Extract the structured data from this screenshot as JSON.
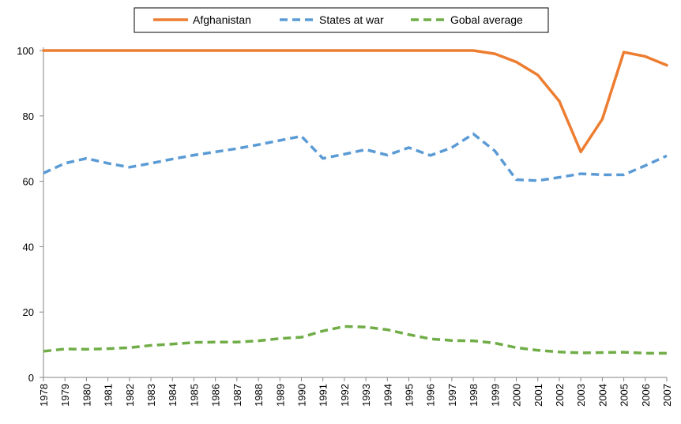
{
  "chart_data": {
    "type": "line",
    "title": "",
    "xlabel": "",
    "ylabel": "",
    "ylim": [
      0,
      100
    ],
    "yticks": [
      0,
      20,
      40,
      60,
      80,
      100
    ],
    "grid": false,
    "legend_position": "top-center",
    "x": [
      "1978",
      "1979",
      "1980",
      "1981",
      "1982",
      "1983",
      "1984",
      "1985",
      "1986",
      "1987",
      "1988",
      "1989",
      "1990",
      "1991",
      "1992",
      "1993",
      "1994",
      "1995",
      "1996",
      "1997",
      "1998",
      "1999",
      "2000",
      "2001",
      "2002",
      "2003",
      "2004",
      "2005",
      "2006",
      "2007"
    ],
    "series": [
      {
        "name": "Afghanistan",
        "color": "#ED7D31",
        "dash": "solid",
        "values": [
          100,
          100,
          100,
          100,
          100,
          100,
          100,
          100,
          100,
          100,
          100,
          100,
          100,
          100,
          100,
          100,
          100,
          100,
          100,
          100,
          100,
          99,
          96.5,
          92.5,
          84.5,
          69,
          79,
          99.5,
          98.2,
          95.5
        ]
      },
      {
        "name": "States at war",
        "color": "#5B9BD5",
        "dash": "dashed",
        "values": [
          62.5,
          65.5,
          67,
          65.5,
          64.3,
          65.5,
          66.8,
          68,
          69,
          70,
          71.2,
          72.5,
          73.8,
          67,
          68.3,
          69.7,
          68,
          70.3,
          67.9,
          70.3,
          74.5,
          69.3,
          60.5,
          60.2,
          61.2,
          62.3,
          62,
          62,
          64.8,
          67.8
        ]
      },
      {
        "name": "Gobal average",
        "color": "#70AD47",
        "dash": "dashed",
        "values": [
          8,
          8.7,
          8.6,
          8.8,
          9.1,
          9.8,
          10.2,
          10.7,
          10.8,
          10.8,
          11.2,
          11.9,
          12.3,
          14.2,
          15.6,
          15.4,
          14.6,
          13.1,
          11.8,
          11.3,
          11.2,
          10.5,
          9.1,
          8.3,
          7.8,
          7.5,
          7.6,
          7.7,
          7.4,
          7.4
        ]
      }
    ]
  }
}
